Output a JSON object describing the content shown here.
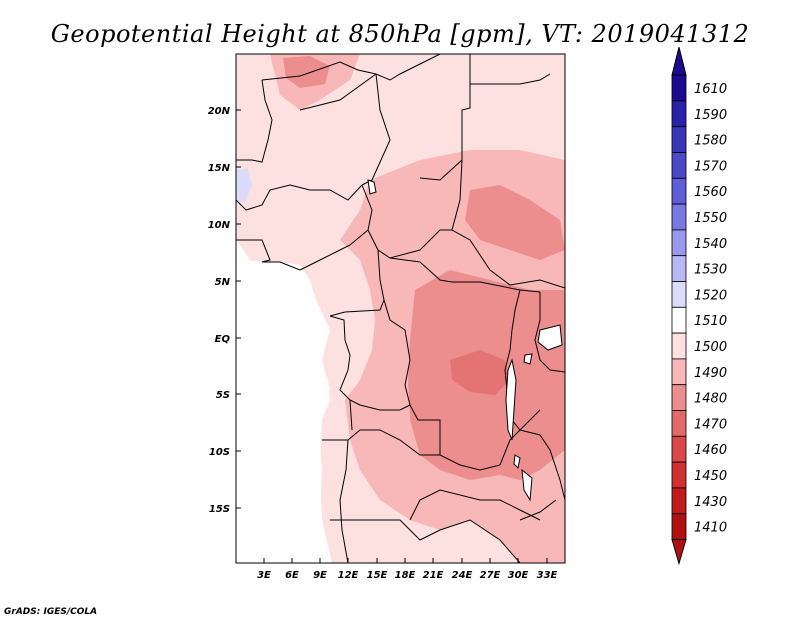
{
  "title": "Geopotential Height at 850hPa [gpm], VT: 2019041312",
  "credit": "GrADS: IGES/COLA",
  "map": {
    "y_ticks": [
      "20N",
      "15N",
      "10N",
      "5N",
      "EQ",
      "5S",
      "10S",
      "15S"
    ],
    "x_ticks": [
      "3E",
      "6E",
      "9E",
      "12E",
      "15E",
      "18E",
      "21E",
      "24E",
      "27E",
      "30E",
      "33E"
    ]
  },
  "colorbar": {
    "labels": [
      "1610",
      "1590",
      "1580",
      "1570",
      "1560",
      "1550",
      "1540",
      "1530",
      "1520",
      "1510",
      "1500",
      "1490",
      "1480",
      "1470",
      "1460",
      "1450",
      "1430",
      "1410"
    ],
    "colors": [
      "#1d0a90",
      "#2a21a8",
      "#3a34b8",
      "#4a4ac8",
      "#5e5ed6",
      "#7a78e2",
      "#9898ec",
      "#b8b8f4",
      "#dcdcfa",
      "#ffffff",
      "#fde0e0",
      "#f8b8b8",
      "#ec8e8e",
      "#e46a6a",
      "#dc4848",
      "#d03030",
      "#c01c1c",
      "#b01010"
    ]
  }
}
